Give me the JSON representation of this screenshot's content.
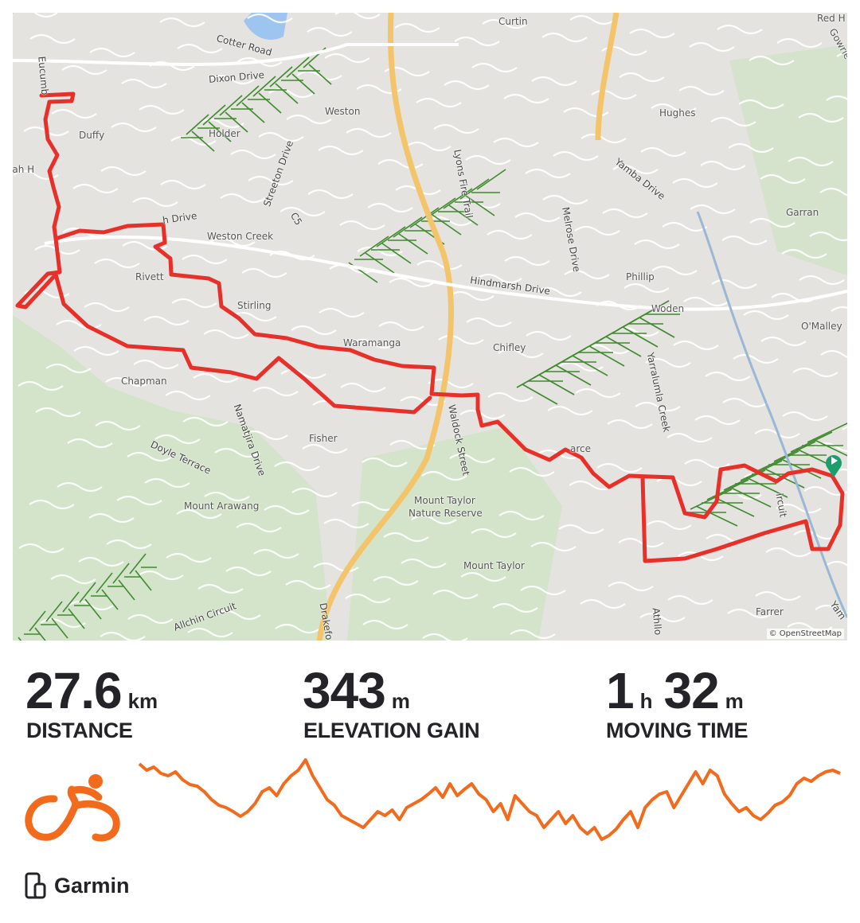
{
  "map": {
    "attribution": "© OpenStreetMap",
    "route_color": "#e8302a",
    "start_marker_color": "#1a9e6a",
    "labels": {
      "curtin": "Curtin",
      "red_hill": "Red H",
      "gowrie": "Gowrie",
      "cotter_road": "Cotter Road",
      "dixon_drive": "Dixon Drive",
      "eucumbene": "Eucumb",
      "weston": "Weston",
      "hughes": "Hughes",
      "duffy": "Duffy",
      "holder": "Holder",
      "lyons_fire_trail": "Lyons Fire Trail",
      "streeton_drive": "Streeton Drive",
      "yamba_drive": "Yamba Drive",
      "garran": "Garran",
      "h_drive": "h Drive",
      "weston_creek": "Weston Creek",
      "hindmarsh_drive": "Hindmarsh Drive",
      "melrose_drive": "Melrose Drive",
      "phillip": "Phillip",
      "rivett": "Rivett",
      "stirling": "Stirling",
      "woden": "Woden",
      "omalley": "O'Malley",
      "waramanga": "Waramanga",
      "chifley": "Chifley",
      "chapman": "Chapman",
      "fisher": "Fisher",
      "pearce": "arce",
      "waldock_street": "Waldock Street",
      "yarralumla_creek": "Yarralumla Creek",
      "namatjira_drive": "Namatjira Drive",
      "doyle_terrace": "Doyle Terrace",
      "mount_arawang": "Mount Arawang",
      "mount_taylor_reserve_1": "Mount Taylor",
      "mount_taylor_reserve_2": "Nature Reserve",
      "mount_taylor": "Mount Taylor",
      "farrer": "Farrer",
      "allchin_circuit": "Allchin Circuit",
      "drakeford": "Drakefo",
      "athllon": "Athllo",
      "lah_h": "lah H",
      "c5": "C5",
      "ircuit": "ircuit",
      "yam": "Yam"
    }
  },
  "stats": {
    "distance": {
      "value": "27.6",
      "unit": "km",
      "label": "DISTANCE"
    },
    "elevation": {
      "value": "343",
      "unit": "m",
      "label": "ELEVATION GAIN"
    },
    "moving_time": {
      "hours": "1",
      "hours_unit": "h",
      "minutes": "32",
      "minutes_unit": "m",
      "label": "MOVING TIME"
    }
  },
  "profile": {
    "color": "#f26b1d"
  },
  "activity": {
    "type_icon": "cycling-icon",
    "device_icon": "device-watch-icon",
    "device": "Garmin"
  }
}
